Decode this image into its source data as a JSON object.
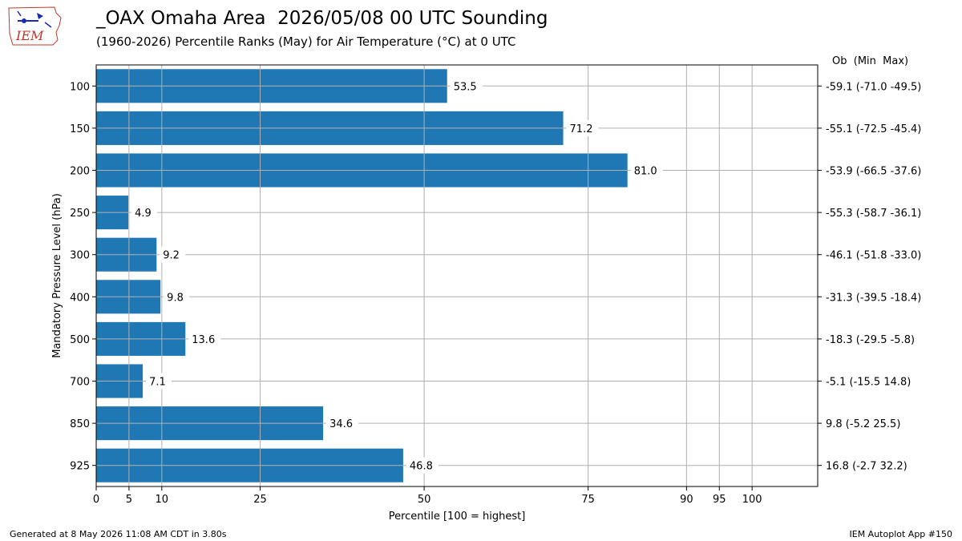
{
  "header": {
    "title": "_OAX Omaha Area  2026/05/08 00 UTC Sounding",
    "subtitle": "(1960-2026) Percentile Ranks (May) for Air Temperature (°C) at 0 UTC"
  },
  "logo": {
    "text": "IEM",
    "icon": "iem-iowa-logo-icon"
  },
  "footer": {
    "generated": "Generated at 8 May 2026 11:08 AM CDT in 3.80s",
    "app": "IEM Autoplot App #150"
  },
  "chart_data": {
    "type": "bar",
    "orientation": "horizontal",
    "xlabel": "Percentile [100 = highest]",
    "ylabel": "Mandatory Pressure Level (hPa)",
    "right_header": "Ob  (Min  Max)",
    "xlim": [
      0,
      110
    ],
    "xticks": [
      0,
      5,
      10,
      25,
      50,
      75,
      90,
      95,
      100
    ],
    "grid": true,
    "bar_color": "#1f77b4",
    "categories": [
      "100",
      "150",
      "200",
      "250",
      "300",
      "400",
      "500",
      "700",
      "850",
      "925"
    ],
    "values": [
      53.5,
      71.2,
      81.0,
      4.9,
      9.2,
      9.8,
      13.6,
      7.1,
      34.6,
      46.8
    ],
    "value_labels": [
      "53.5",
      "71.2",
      "81.0",
      "4.9",
      "9.2",
      "9.8",
      "13.6",
      "7.1",
      "34.6",
      "46.8"
    ],
    "right_labels": [
      "-59.1 (-71.0 -49.5)",
      "-55.1 (-72.5 -45.4)",
      "-53.9 (-66.5 -37.6)",
      "-55.3 (-58.7 -36.1)",
      "-46.1 (-51.8 -33.0)",
      "-31.3 (-39.5 -18.4)",
      "-18.3 (-29.5 -5.8)",
      "-5.1 (-15.5 14.8)",
      "9.8 (-5.2 25.5)",
      "16.8 (-2.7 32.2)"
    ]
  }
}
